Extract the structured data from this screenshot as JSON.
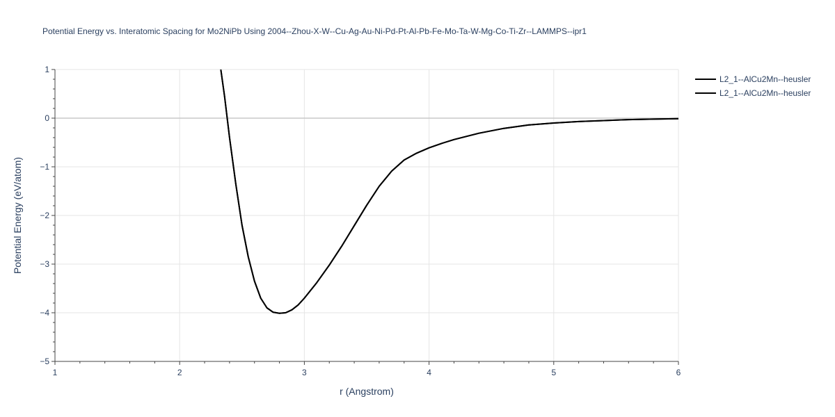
{
  "chart_data": {
    "type": "line",
    "title": "Potential Energy vs. Interatomic Spacing for Mo2NiPb Using 2004--Zhou-X-W--Cu-Ag-Au-Ni-Pd-Pt-Al-Pb-Fe-Mo-Ta-W-Mg-Co-Ti-Zr--LAMMPS--ipr1",
    "xlabel": "r (Angstrom)",
    "ylabel": "Potential Energy (eV/atom)",
    "xlim": [
      1,
      6
    ],
    "ylim": [
      -5,
      1
    ],
    "xticks": [
      1,
      2,
      3,
      4,
      5,
      6
    ],
    "yticks": [
      -5,
      -4,
      -3,
      -2,
      -1,
      0,
      1
    ],
    "ytick_labels": [
      "−5",
      "−4",
      "−3",
      "−2",
      "−1",
      "0",
      "1"
    ],
    "grid": true,
    "legend_position": "top-right",
    "series": [
      {
        "name": "L2_1--AlCu2Mn--heusler",
        "color": "#000000",
        "x": [
          2.33,
          2.36,
          2.4,
          2.45,
          2.5,
          2.55,
          2.6,
          2.65,
          2.7,
          2.75,
          2.8,
          2.85,
          2.9,
          2.95,
          3.0,
          3.1,
          3.2,
          3.3,
          3.4,
          3.5,
          3.6,
          3.7,
          3.8,
          3.9,
          4.0,
          4.1,
          4.2,
          4.4,
          4.6,
          4.8,
          5.0,
          5.2,
          5.4,
          5.6,
          5.8,
          6.0
        ],
        "y": [
          1.0,
          0.45,
          -0.4,
          -1.35,
          -2.2,
          -2.85,
          -3.35,
          -3.7,
          -3.9,
          -3.99,
          -4.01,
          -4.0,
          -3.94,
          -3.84,
          -3.7,
          -3.38,
          -3.02,
          -2.63,
          -2.21,
          -1.79,
          -1.4,
          -1.09,
          -0.86,
          -0.72,
          -0.61,
          -0.52,
          -0.44,
          -0.31,
          -0.21,
          -0.14,
          -0.1,
          -0.07,
          -0.05,
          -0.03,
          -0.02,
          -0.01
        ]
      },
      {
        "name": "L2_1--AlCu2Mn--heusler",
        "color": "#000000",
        "x": [
          2.33,
          2.36,
          2.4,
          2.45,
          2.5,
          2.55,
          2.6,
          2.65,
          2.7,
          2.75,
          2.8,
          2.85,
          2.9,
          2.95,
          3.0,
          3.1,
          3.2,
          3.3,
          3.4,
          3.5,
          3.6,
          3.7,
          3.8,
          3.9,
          4.0,
          4.1,
          4.2,
          4.4,
          4.6,
          4.8,
          5.0,
          5.2,
          5.4,
          5.6,
          5.8,
          6.0
        ],
        "y": [
          1.0,
          0.45,
          -0.4,
          -1.35,
          -2.2,
          -2.85,
          -3.35,
          -3.7,
          -3.9,
          -3.99,
          -4.01,
          -4.0,
          -3.94,
          -3.84,
          -3.7,
          -3.38,
          -3.02,
          -2.63,
          -2.21,
          -1.79,
          -1.4,
          -1.09,
          -0.86,
          -0.72,
          -0.61,
          -0.52,
          -0.44,
          -0.31,
          -0.21,
          -0.14,
          -0.1,
          -0.07,
          -0.05,
          -0.03,
          -0.02,
          -0.01
        ]
      }
    ]
  }
}
